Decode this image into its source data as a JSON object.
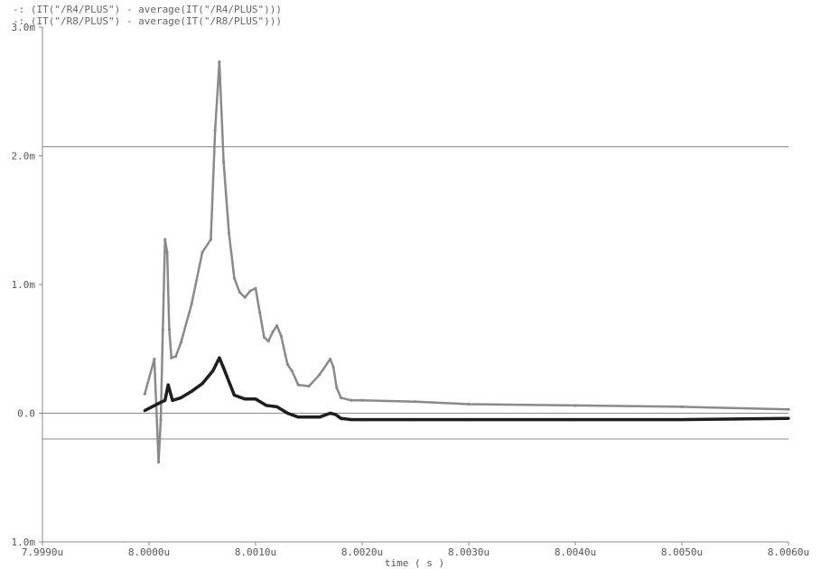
{
  "chart_data": {
    "type": "line",
    "xlabel": "time ( s )",
    "ylabel": "",
    "xlim": [
      7.999,
      8.006
    ],
    "ylim": [
      -1.0,
      3.0
    ],
    "x_ticks": [
      "7.9990u",
      "8.0000u",
      "8.0010u",
      "8.0020u",
      "8.0030u",
      "8.0040u",
      "8.0050u",
      "8.0060u"
    ],
    "y_ticks": [
      {
        "value": 3.0,
        "label": "3.0m"
      },
      {
        "value": 2.0,
        "label": "2.0m"
      },
      {
        "value": 1.0,
        "label": "1.0m"
      },
      {
        "value": 0.0,
        "label": "0.0"
      },
      {
        "value": -1.0,
        "label": "1.0m"
      }
    ],
    "reference_lines": [
      2.07,
      0.0,
      -0.2
    ],
    "series": [
      {
        "name": "(IT(\"/R4/PLUS\") - average(IT(\"/R4/PLUS\")))",
        "marker": "-:",
        "color": "#8a8a8a",
        "x": [
          7.99996,
          8.00005,
          8.00009,
          8.00011,
          8.00013,
          8.00015,
          8.00017,
          8.00019,
          8.00021,
          8.00025,
          8.0003,
          8.0004,
          8.0005,
          8.00058,
          8.00062,
          8.00066,
          8.0007,
          8.00075,
          8.0008,
          8.00085,
          8.0009,
          8.00095,
          8.001,
          8.00104,
          8.00108,
          8.00112,
          8.00116,
          8.0012,
          8.00124,
          8.00128,
          8.0013,
          8.00134,
          8.0014,
          8.0015,
          8.0016,
          8.0017,
          8.00173,
          8.00176,
          8.0018,
          8.0019,
          8.002,
          8.0025,
          8.003,
          8.004,
          8.005,
          8.006
        ],
        "y": [
          0.15,
          0.42,
          -0.38,
          -0.05,
          0.65,
          1.35,
          1.25,
          0.65,
          0.43,
          0.44,
          0.55,
          0.85,
          1.25,
          1.35,
          2.2,
          2.73,
          1.95,
          1.4,
          1.05,
          0.94,
          0.9,
          0.95,
          0.97,
          0.78,
          0.59,
          0.56,
          0.63,
          0.68,
          0.6,
          0.45,
          0.38,
          0.33,
          0.22,
          0.21,
          0.3,
          0.42,
          0.36,
          0.2,
          0.12,
          0.1,
          0.1,
          0.09,
          0.07,
          0.06,
          0.05,
          0.03
        ]
      },
      {
        "name": "(IT(\"/R8/PLUS\") - average(IT(\"/R8/PLUS\")))",
        "marker": "-:",
        "color": "#1e1e1e",
        "x": [
          7.99996,
          8.0001,
          8.00015,
          8.00018,
          8.00022,
          8.0003,
          8.0004,
          8.0005,
          8.0006,
          8.00066,
          8.0007,
          8.0008,
          8.0009,
          8.001,
          8.0011,
          8.0012,
          8.0013,
          8.0014,
          8.0015,
          8.0016,
          8.0017,
          8.00175,
          8.0018,
          8.0019,
          8.002,
          8.0025,
          8.003,
          8.004,
          8.005,
          8.006
        ],
        "y": [
          0.02,
          0.08,
          0.1,
          0.22,
          0.1,
          0.12,
          0.17,
          0.23,
          0.33,
          0.43,
          0.35,
          0.14,
          0.11,
          0.11,
          0.06,
          0.05,
          0.0,
          -0.03,
          -0.03,
          -0.03,
          0.0,
          -0.01,
          -0.04,
          -0.05,
          -0.05,
          -0.05,
          -0.05,
          -0.05,
          -0.05,
          -0.04
        ]
      }
    ]
  }
}
